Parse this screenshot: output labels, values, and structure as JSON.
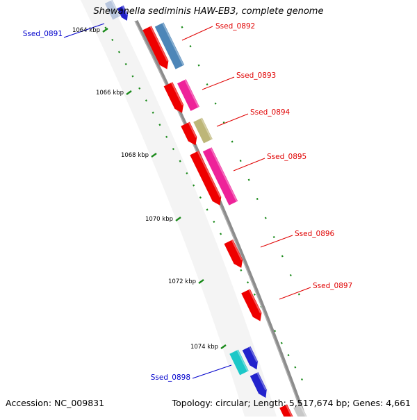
{
  "title": "Shewanella sediminis HAW-EB3, complete genome",
  "accession": "Accession: NC_009831",
  "summary": "Topology: circular; Length: 5,517,674 bp; Genes: 4,661",
  "ticks": [
    {
      "label": "1064 kbp"
    },
    {
      "label": "1066 kbp"
    },
    {
      "label": "1068 kbp"
    },
    {
      "label": "1070 kbp"
    },
    {
      "label": "1072 kbp"
    },
    {
      "label": "1074 kbp"
    }
  ],
  "gene_labels": [
    {
      "text": "Ssed_0891",
      "color": "#0000cc"
    },
    {
      "text": "Ssed_0892",
      "color": "#e00000"
    },
    {
      "text": "Ssed_0893",
      "color": "#e00000"
    },
    {
      "text": "Ssed_0894",
      "color": "#e00000"
    },
    {
      "text": "Ssed_0895",
      "color": "#e00000"
    },
    {
      "text": "Ssed_0896",
      "color": "#e00000"
    },
    {
      "text": "Ssed_0897",
      "color": "#e00000"
    },
    {
      "text": "Ssed_0898",
      "color": "#0000cc"
    }
  ],
  "colors": {
    "backbone": "#8c8c8c",
    "cds": "#ee0000",
    "blue_gene": "#2222cc",
    "tick": "#1a8a1a",
    "steelblue": "#4d86b8",
    "magenta": "#ee2299",
    "olive": "#bdb678",
    "cyan": "#1cc8c8"
  }
}
